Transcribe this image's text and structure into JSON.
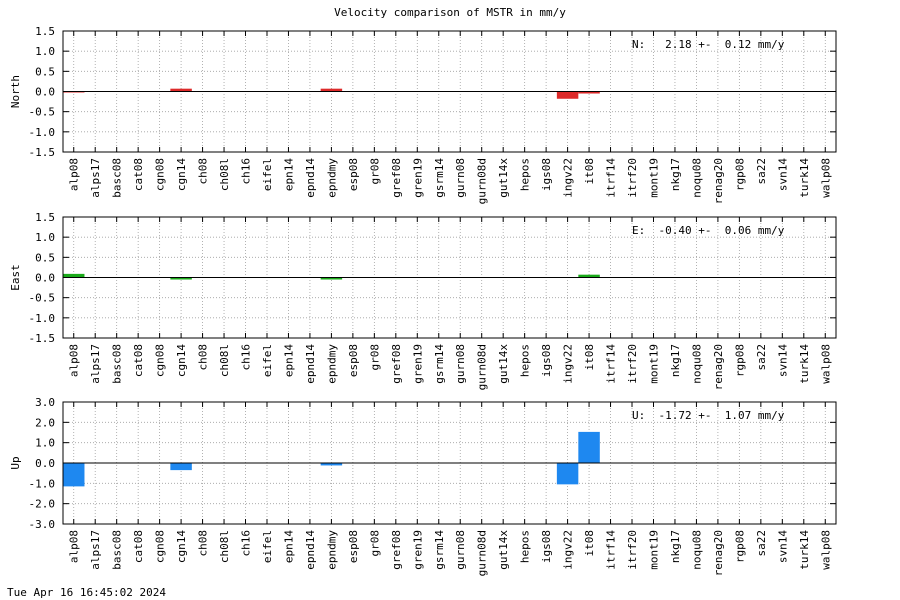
{
  "title": "Velocity comparison of MSTR in mm/y",
  "timestamp": "Tue Apr 16 16:45:02 2024",
  "chart_data": [
    {
      "type": "bar",
      "title": "",
      "ylabel": "North",
      "ylim": [
        -1.5,
        1.5
      ],
      "yticks": [
        "1.5",
        "1.0",
        "0.5",
        "0.0",
        "-0.5",
        "-1.0",
        "-1.5"
      ],
      "annotation": "N:   2.18 +-  0.12 mm/y",
      "color": "#dd2a2a",
      "grid": true,
      "categories": [
        "alp08",
        "alps17",
        "basc08",
        "cat08",
        "cgn08",
        "cgn14",
        "ch08",
        "ch08l",
        "ch16",
        "eifel",
        "epn14",
        "epnd14",
        "epndmy",
        "esp08",
        "gr08",
        "gref08",
        "gren19",
        "gsrm14",
        "gurn08",
        "gurn08d",
        "gut14x",
        "hepos",
        "igs08",
        "ingv22",
        "it08",
        "itrf14",
        "itrf20",
        "mont19",
        "nkg17",
        "noqu08",
        "renag20",
        "rgp08",
        "sa22",
        "svn14",
        "turk14",
        "walp08"
      ],
      "values": [
        -0.02,
        0,
        0,
        0,
        0,
        0.07,
        0,
        0,
        0,
        0,
        0,
        0,
        0.07,
        0,
        0,
        0,
        0,
        0,
        0,
        0,
        0,
        0,
        0,
        -0.18,
        -0.05,
        0,
        0,
        0,
        0,
        0,
        0,
        0,
        0,
        0,
        0,
        0
      ]
    },
    {
      "type": "bar",
      "title": "",
      "ylabel": "East",
      "ylim": [
        -1.5,
        1.5
      ],
      "yticks": [
        "1.5",
        "1.0",
        "0.5",
        "0.0",
        "-0.5",
        "-1.0",
        "-1.5"
      ],
      "annotation": "E:  -0.40 +-  0.06 mm/y",
      "color": "#1aaa1a",
      "grid": true,
      "categories": [
        "alp08",
        "alps17",
        "basc08",
        "cat08",
        "cgn08",
        "cgn14",
        "ch08",
        "ch08l",
        "ch16",
        "eifel",
        "epn14",
        "epnd14",
        "epndmy",
        "esp08",
        "gr08",
        "gref08",
        "gren19",
        "gsrm14",
        "gurn08",
        "gurn08d",
        "gut14x",
        "hepos",
        "igs08",
        "ingv22",
        "it08",
        "itrf14",
        "itrf20",
        "mont19",
        "nkg17",
        "noqu08",
        "renag20",
        "rgp08",
        "sa22",
        "svn14",
        "turk14",
        "walp08"
      ],
      "values": [
        0.09,
        0,
        0,
        0,
        0,
        -0.05,
        0,
        0,
        0,
        0,
        0,
        0,
        -0.05,
        0,
        0,
        0,
        0,
        0,
        0,
        0,
        0,
        0,
        0,
        0,
        0.07,
        0,
        0,
        0,
        0,
        0,
        0,
        0,
        0,
        0,
        0,
        0
      ]
    },
    {
      "type": "bar",
      "title": "",
      "ylabel": "Up",
      "ylim": [
        -3.0,
        3.0
      ],
      "yticks": [
        "3.0",
        "2.0",
        "1.0",
        "0.0",
        "-1.0",
        "-2.0",
        "-3.0"
      ],
      "annotation": "U:  -1.72 +-  1.07 mm/y",
      "color": "#1e88f0",
      "grid": true,
      "categories": [
        "alp08",
        "alps17",
        "basc08",
        "cat08",
        "cgn08",
        "cgn14",
        "ch08",
        "ch08l",
        "ch16",
        "eifel",
        "epn14",
        "epnd14",
        "epndmy",
        "esp08",
        "gr08",
        "gref08",
        "gren19",
        "gsrm14",
        "gurn08",
        "gurn08d",
        "gut14x",
        "hepos",
        "igs08",
        "ingv22",
        "it08",
        "itrf14",
        "itrf20",
        "mont19",
        "nkg17",
        "noqu08",
        "renag20",
        "rgp08",
        "sa22",
        "svn14",
        "turk14",
        "walp08"
      ],
      "values": [
        -1.15,
        0,
        0,
        0,
        0,
        -0.35,
        0,
        0,
        0,
        0,
        0,
        0,
        -0.12,
        0,
        0,
        0,
        0,
        0,
        0,
        0,
        0,
        0,
        0,
        -1.05,
        1.53,
        0,
        0,
        0,
        0,
        0,
        0,
        0,
        0,
        0,
        0,
        0
      ]
    }
  ]
}
